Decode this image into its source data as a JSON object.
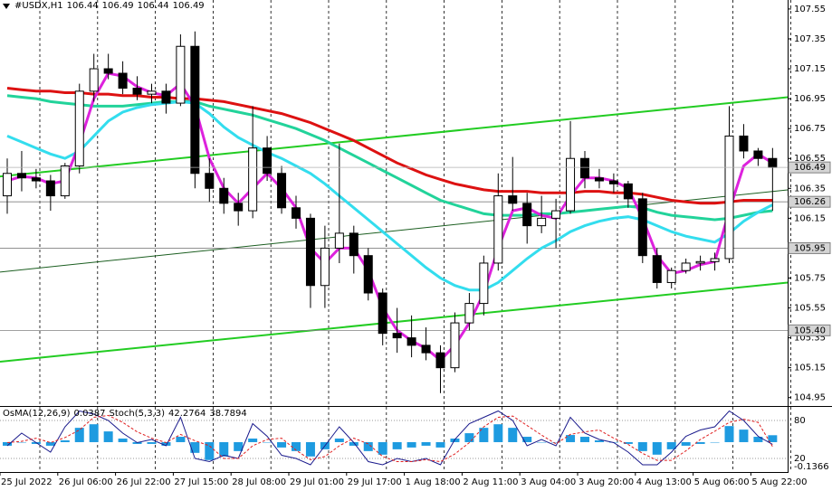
{
  "chart_data": [
    {
      "type": "candlestick",
      "title": "#USDX,H1",
      "header_values": [
        106.44,
        106.49,
        106.44,
        106.49
      ],
      "categories": [
        "25 Jul 2022",
        null,
        null,
        null,
        "26 Jul 06:00",
        null,
        null,
        null,
        "26 Jul 22:00",
        null,
        null,
        null,
        "27 Jul 15:00",
        null,
        null,
        null,
        "28 Jul 08:00",
        null,
        null,
        null,
        "29 Jul 01:00",
        null,
        null,
        null,
        "29 Jul 17:00",
        null,
        null,
        null,
        "1 Aug 18:00",
        null,
        null,
        null,
        "2 Aug 11:00",
        null,
        null,
        null,
        "3 Aug 04:00",
        null,
        null,
        null,
        "3 Aug 20:00",
        null,
        null,
        null,
        "4 Aug 13:00",
        null,
        null,
        null,
        "5 Aug 06:00",
        null,
        null,
        null,
        "5 Aug 22:00",
        null
      ],
      "open": [
        106.3,
        106.45,
        106.42,
        106.4,
        106.3,
        106.5,
        107.0,
        107.15,
        107.12,
        107.02,
        106.98,
        107.0,
        106.92,
        107.3,
        106.45,
        106.35,
        106.25,
        106.2,
        106.62,
        106.45,
        106.22,
        106.15,
        105.7,
        105.95,
        106.05,
        105.9,
        105.65,
        105.38,
        105.35,
        105.3,
        105.25,
        105.15,
        105.45,
        105.58,
        105.85,
        106.3,
        106.25,
        106.1,
        106.15,
        106.2,
        106.55,
        106.42,
        106.4,
        106.38,
        106.28,
        105.9,
        105.72,
        105.8,
        105.85,
        105.86,
        105.88,
        106.7,
        106.6,
        106.55
      ],
      "high": [
        106.55,
        106.6,
        106.48,
        106.44,
        106.52,
        107.05,
        107.25,
        107.25,
        107.2,
        107.1,
        107.05,
        107.05,
        107.38,
        107.4,
        106.55,
        106.42,
        106.32,
        106.9,
        106.7,
        106.5,
        106.3,
        106.18,
        106.1,
        106.65,
        106.1,
        105.95,
        105.68,
        105.55,
        105.5,
        105.42,
        105.3,
        105.52,
        105.65,
        105.9,
        106.45,
        106.56,
        106.32,
        106.3,
        106.28,
        106.8,
        106.6,
        106.48,
        106.45,
        106.4,
        106.32,
        105.95,
        105.82,
        105.88,
        105.9,
        105.92,
        106.9,
        106.78,
        106.62,
        106.62
      ],
      "low": [
        106.18,
        106.33,
        106.35,
        106.2,
        106.28,
        106.45,
        106.93,
        107.08,
        106.98,
        106.94,
        106.92,
        106.85,
        106.9,
        106.35,
        106.26,
        106.18,
        106.1,
        106.15,
        106.4,
        106.18,
        106.08,
        105.55,
        105.55,
        105.85,
        105.78,
        105.6,
        105.3,
        105.25,
        105.22,
        105.2,
        104.98,
        105.12,
        105.4,
        105.5,
        105.8,
        106.2,
        105.98,
        106.05,
        105.95,
        106.18,
        106.35,
        106.35,
        106.32,
        106.22,
        105.85,
        105.68,
        105.68,
        105.78,
        105.8,
        105.8,
        105.85,
        106.55,
        106.5,
        106.2
      ],
      "close": [
        106.45,
        106.42,
        106.4,
        106.3,
        106.5,
        107.0,
        107.15,
        107.12,
        107.02,
        106.98,
        107.0,
        106.92,
        107.3,
        106.45,
        106.35,
        106.25,
        106.2,
        106.62,
        106.45,
        106.22,
        106.15,
        105.7,
        105.95,
        106.05,
        105.9,
        105.65,
        105.38,
        105.35,
        105.3,
        105.25,
        105.15,
        105.45,
        105.58,
        105.85,
        106.3,
        106.25,
        106.1,
        106.15,
        106.2,
        106.55,
        106.42,
        106.4,
        106.38,
        106.28,
        105.9,
        105.72,
        105.8,
        105.85,
        105.86,
        105.88,
        106.7,
        106.6,
        106.55,
        106.49
      ],
      "color": "#000000",
      "lines": [
        {
          "color": "#dd1111",
          "values": [
            107.02,
            107.01,
            107.0,
            107.0,
            106.99,
            106.99,
            106.98,
            106.98,
            106.97,
            106.97,
            106.96,
            106.96,
            106.95,
            106.95,
            106.94,
            106.93,
            106.91,
            106.89,
            106.87,
            106.85,
            106.82,
            106.79,
            106.75,
            106.71,
            106.67,
            106.62,
            106.57,
            106.52,
            106.48,
            106.44,
            106.41,
            106.38,
            106.36,
            106.34,
            106.33,
            106.33,
            106.33,
            106.32,
            106.32,
            106.32,
            106.33,
            106.33,
            106.32,
            106.32,
            106.31,
            106.29,
            106.27,
            106.26,
            106.25,
            106.25,
            106.26,
            106.27,
            106.27,
            106.27
          ]
        },
        {
          "color": "#22d39a",
          "values": [
            106.97,
            106.96,
            106.95,
            106.93,
            106.92,
            106.91,
            106.9,
            106.9,
            106.9,
            106.91,
            106.92,
            106.93,
            106.93,
            106.93,
            106.9,
            106.88,
            106.86,
            106.84,
            106.81,
            106.78,
            106.75,
            106.71,
            106.67,
            106.62,
            106.57,
            106.52,
            106.47,
            106.42,
            106.37,
            106.32,
            106.27,
            106.24,
            106.21,
            106.18,
            106.17,
            106.17,
            106.17,
            106.18,
            106.18,
            106.19,
            106.2,
            106.21,
            106.22,
            106.23,
            106.22,
            106.19,
            106.17,
            106.16,
            106.15,
            106.14,
            106.15,
            106.17,
            106.19,
            106.2
          ]
        },
        {
          "color": "#33ddee",
          "values": [
            106.7,
            106.66,
            106.62,
            106.58,
            106.55,
            106.6,
            106.7,
            106.8,
            106.86,
            106.89,
            106.91,
            106.92,
            106.93,
            106.92,
            106.85,
            106.76,
            106.69,
            106.64,
            106.59,
            106.55,
            106.5,
            106.45,
            106.38,
            106.3,
            106.22,
            106.14,
            106.06,
            105.98,
            105.9,
            105.82,
            105.75,
            105.7,
            105.67,
            105.67,
            105.72,
            105.8,
            105.88,
            105.95,
            106.0,
            106.06,
            106.1,
            106.13,
            106.15,
            106.16,
            106.14,
            106.1,
            106.06,
            106.03,
            106.01,
            105.99,
            106.05,
            106.13,
            106.19,
            106.24
          ]
        },
        {
          "color": "#dd22dd",
          "values": [
            106.4,
            106.43,
            106.42,
            106.38,
            106.4,
            106.65,
            106.95,
            107.12,
            107.1,
            107.03,
            106.99,
            106.97,
            107.05,
            106.9,
            106.55,
            106.35,
            106.25,
            106.35,
            106.45,
            106.35,
            106.22,
            105.95,
            105.85,
            105.95,
            105.95,
            105.8,
            105.55,
            105.4,
            105.33,
            105.28,
            105.2,
            105.3,
            105.45,
            105.65,
            105.95,
            106.2,
            106.22,
            106.17,
            106.15,
            106.3,
            106.42,
            106.42,
            106.4,
            106.35,
            106.15,
            105.9,
            105.78,
            105.8,
            105.84,
            105.86,
            106.2,
            106.5,
            106.58,
            106.52
          ]
        }
      ],
      "trendlines": [
        {
          "color": "#22cc22",
          "values": [
            106.43,
            106.96
          ]
        },
        {
          "color": "#22cc22",
          "values": [
            105.19,
            105.72
          ]
        },
        {
          "color": "#1b5e20",
          "values": [
            105.79,
            106.34
          ]
        }
      ],
      "levels": [
        106.26,
        105.95,
        {
          "value": 105.4,
          "label": "105.40"
        }
      ],
      "ylim": [
        104.9,
        107.61
      ],
      "yticks": [
        107.55,
        107.35,
        107.15,
        106.95,
        106.75,
        106.55,
        106.35,
        106.15,
        105.95,
        105.75,
        105.55,
        105.35,
        105.15,
        104.95
      ],
      "grid": true
    },
    {
      "type": "oscillator",
      "series": [
        {
          "name": "OsMA(12,26,9)",
          "color": "#1e9be0",
          "axis": "y2",
          "values": [
            -0.02,
            0,
            -0.01,
            -0.02,
            0.01,
            0.08,
            0.1,
            0.06,
            0.02,
            -0.01,
            -0.01,
            -0.02,
            0.03,
            -0.06,
            -0.1,
            -0.08,
            -0.05,
            0.02,
            0,
            -0.03,
            -0.05,
            -0.08,
            -0.04,
            0.02,
            -0.02,
            -0.05,
            -0.07,
            -0.04,
            -0.03,
            -0.02,
            -0.03,
            0.02,
            0.05,
            0.08,
            0.1,
            0.08,
            0.03,
            0,
            0,
            0.04,
            0.03,
            0.01,
            0,
            -0.01,
            -0.05,
            -0.07,
            -0.04,
            -0.02,
            -0.01,
            0,
            0.09,
            0.07,
            0.03,
            0.0387
          ]
        },
        {
          "name": "Stoch(5,3,3)",
          "color": "#1a1a8c",
          "values": [
            40,
            60,
            45,
            30,
            70,
            95,
            90,
            80,
            60,
            45,
            50,
            40,
            85,
            20,
            15,
            25,
            20,
            75,
            55,
            25,
            20,
            10,
            40,
            70,
            45,
            15,
            10,
            20,
            15,
            20,
            10,
            50,
            75,
            85,
            95,
            80,
            40,
            50,
            40,
            85,
            60,
            50,
            45,
            30,
            10,
            10,
            30,
            55,
            65,
            70,
            95,
            80,
            55,
            42.2764
          ]
        },
        {
          "color": "#e02020",
          "values": [
            45,
            47,
            52,
            45,
            53,
            65,
            85,
            88,
            77,
            62,
            52,
            45,
            58,
            48,
            40,
            20,
            20,
            40,
            50,
            52,
            33,
            18,
            23,
            40,
            52,
            43,
            23,
            15,
            15,
            18,
            15,
            27,
            45,
            70,
            85,
            87,
            72,
            57,
            43,
            58,
            62,
            65,
            52,
            42,
            28,
            17,
            17,
            32,
            50,
            63,
            77,
            82,
            77,
            38.7894
          ]
        }
      ],
      "ylim": [
        0,
        100
      ],
      "yticks": [
        80,
        20
      ],
      "y2lim": [
        -0.162,
        0.192
      ],
      "y2ticks": [
        -0.1366
      ]
    }
  ]
}
